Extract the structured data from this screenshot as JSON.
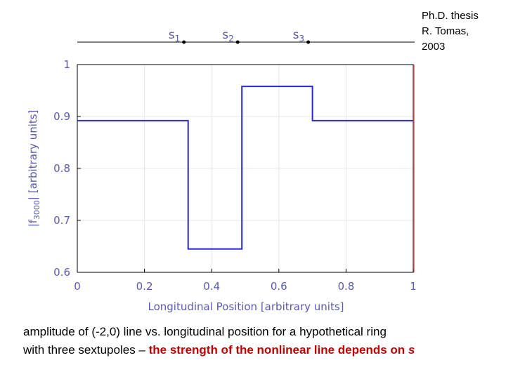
{
  "credit": {
    "line1": "Ph.D. thesis",
    "line2": "R. Tomas,",
    "line3": "2003"
  },
  "caption": {
    "text1": "amplitude of (-2,0) line vs. longitudinal position for a hypothetical ring",
    "text2": "with three sextupoles – ",
    "highlight": "the strength of the nonlinear line depends on ",
    "highlight_var": "s"
  },
  "chart_data": {
    "type": "line",
    "xlabel": "Longitudinal Position [arbitrary units]",
    "ylabel": "|f3000| [arbitrary units]",
    "ylabel_main": "|f",
    "ylabel_sub": "3000",
    "ylabel_rest": "| [arbitrary units]",
    "xlim": [
      0,
      1
    ],
    "ylim": [
      0.6,
      1
    ],
    "xticks": [
      0,
      0.2,
      0.4,
      0.6,
      0.8,
      1
    ],
    "xtick_labels": [
      "0",
      "0.2",
      "0.4",
      "0.6",
      "0.8",
      "1"
    ],
    "yticks": [
      0.6,
      0.7,
      0.8,
      0.9,
      1
    ],
    "ytick_labels": [
      "0.6",
      "0.7",
      "0.8",
      "0.9",
      "1"
    ],
    "series": [
      {
        "x": [
          0,
          0.33,
          0.33,
          0.49,
          0.49,
          0.7,
          0.7,
          1
        ],
        "y": [
          0.892,
          0.892,
          0.645,
          0.645,
          0.958,
          0.958,
          0.892,
          0.892
        ],
        "color": "#2a2ad0"
      }
    ],
    "sextupoles": [
      {
        "label": "s",
        "sub": "1",
        "x": 0.33
      },
      {
        "label": "s",
        "sub": "2",
        "x": 0.49
      },
      {
        "label": "s",
        "sub": "3",
        "x": 0.7
      }
    ],
    "colors": {
      "frame": "#000000",
      "right_edge": "#e06060",
      "axis_text": "#5a5ab0",
      "grid": "#e8e8e8",
      "highlight": "#c00000"
    }
  }
}
